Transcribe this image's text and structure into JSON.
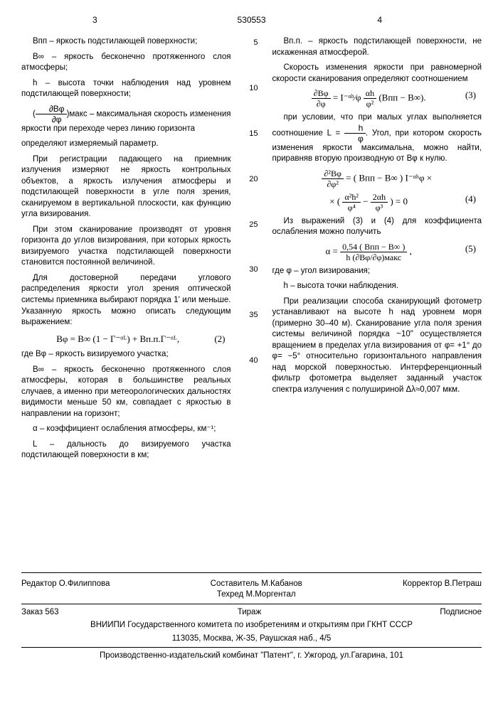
{
  "header": {
    "left_page": "3",
    "doc_number": "530553",
    "right_page": "4"
  },
  "left_col": {
    "p1": "Bпп – яркость подстилающей поверхно­сти;",
    "p2": "B∞ – яркость бесконечно протяженного слоя атмосферы;",
    "p3": "h – высота точки наблюдения над уровнем подстилающей поверхности;",
    "p4a": "(",
    "p4b": ")макс – максимальная скорость из­менения яркости при переходе через линию горизонта",
    "p5": "определяют измеряемый параметр.",
    "p6": "При регистрации падающего на прием­ник излучения измеряют не яркость конт­рольных объектов, а яркость излучения атмосферы и подстилающей поверхности в угле поля зрения, сканируемом в вертикаль­ной плоскости, как функцию угла визирова­ния.",
    "p7": "При этом сканирование производят от уровня горизонта до углов визирования, при которых яркость визируемого участка под­стилающей поверхности становится посто­янной величиной.",
    "p8": "Для достоверной передачи углового распределения яркости угол зрения оптиче­ской системы приемника выбирают порядка 1' или меньше. Указанную яркость можно описать следующим выражением:",
    "eq2": "Bφ = B∞ (1 − Γ⁻ᵅᴸ) + Bп.п.Γ⁻ᵅᴸ,",
    "eq2_num": "(2)",
    "p9": "где Bφ – яркость визируемого участка;",
    "p10": "B∞ – яркость бесконечно протяженного слоя атмосферы, которая в большинстве ре­альных случаев, а именно при метеорологи­ческих дальностях видимости меньше 50 км, совпадает с яркостью в направлении на го­ризонт;",
    "p11": "α – коэффициент ослабления атмосфе­ры, км⁻¹;",
    "p12": "L – дальность до визируемого участка подстилающей поверхности в км;"
  },
  "line_nums": [
    "5",
    "10",
    "15",
    "20",
    "25",
    "30",
    "35",
    "40"
  ],
  "right_col": {
    "p1": "Bп.п. – яркость подстилающей поверх­ности, не искаженная атмосферой.",
    "p2": "Скорость изменения яркости при равно­мерной скорости сканирования определяют соотношением",
    "eq3_left": "∂Bφ",
    "eq3_lden": "∂φ",
    "eq3_mid": " = I⁻ᵅʰ⁄φ ",
    "eq3_frac_num": "αh",
    "eq3_frac_den": "φ²",
    "eq3_tail": " (Bпп − B∞).",
    "eq3_num": "(3)",
    "p3a": "при условии, что при малых углах выполня­ется соотношение L = ",
    "p3_num": "h",
    "p3_den": "φ",
    "p3b": ". Угол, при котором скорость изменения яркости максимальна, можно найти, приравняв вторую производ­ную от Bφ к нулю.",
    "eq4_l1_num": "∂²Bφ",
    "eq4_l1_den": "∂φ²",
    "eq4_l1_mid": " = ( Bпп − B∞ ) I⁻ᵅʰφ ×",
    "eq4_l2_pre": "× (",
    "eq4_f1_num": "α²h²",
    "eq4_f1_den": "φ⁴",
    "eq4_l2_mid": " − ",
    "eq4_f2_num": "2αh",
    "eq4_f2_den": "φ³",
    "eq4_l2_post": ") = 0",
    "eq4_num": "(4)",
    "p4": "Из выражений (3) и (4) для коэффициен­та ослабления можно получить",
    "eq5_lhs": "α = ",
    "eq5_num": "0,54 ( Bпп − B∞ )",
    "eq5_den": "h (∂Bφ/∂φ)макс",
    "eq5_tail": ",",
    "eq5_numlabel": "(5)",
    "p5": "где φ – угол визирования;",
    "p6": "h – высота точки наблюдения.",
    "p7": "При реализации способа сканирующий фотометр устанавливают на высоте h над уровнем моря (примерно 30–40 м). Сканиро­вание угла поля зрения системы величиной порядка ~10\" осуществляется вращением в пределах угла визирования от φ= +1° до φ= −5° относительно горизонтального на­правления над морской поверхностью. Ин­терференционный фильтр фотометра выделяет заданный участок спектра излуче­ния с полушириной Δλ≈0,007 мкм."
  },
  "footer": {
    "editor_label": "Редактор",
    "editor": "О.Филиппова",
    "compiler_label": "Составитель",
    "compiler": "М.Кабанов",
    "techred_label": "Техред",
    "techred": "М.Моргентал",
    "corrector_label": "Корректор",
    "corrector": "В.Петраш",
    "order": "Заказ 563",
    "tirazh": "Тираж",
    "subscr": "Подписное",
    "vniipi": "ВНИИПИ Государственного комитета по изобретениям и открытиям при ГКНТ СССР",
    "address": "113035, Москва, Ж-35, Раушская наб., 4/5",
    "publisher": "Производственно-издательский комбинат \"Патент\", г. Ужгород, ул.Гагарина, 101"
  }
}
